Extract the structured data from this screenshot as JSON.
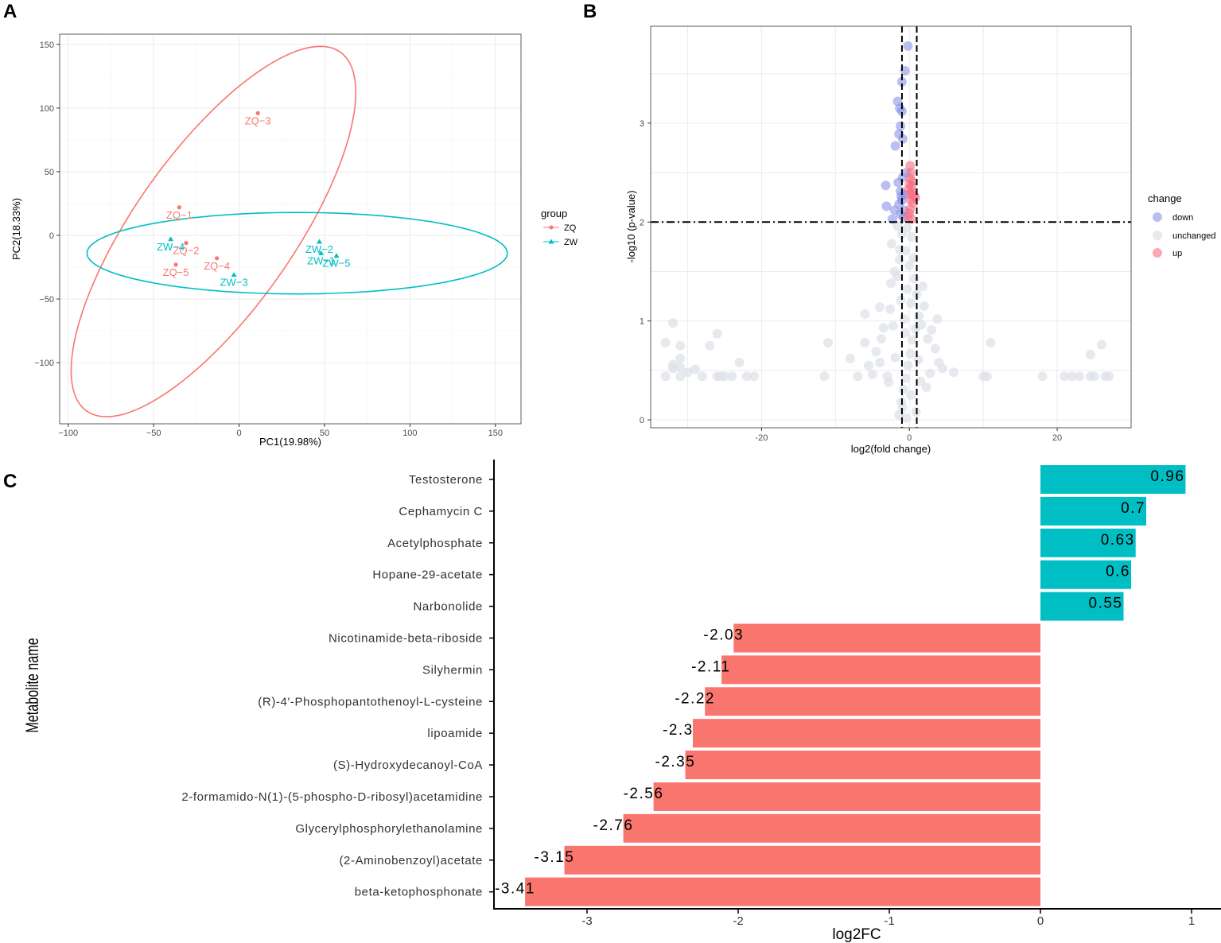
{
  "panels": {
    "a": "A",
    "b": "B",
    "c": "C"
  },
  "colors": {
    "zq": "#F8766D",
    "zw": "#00BFC4",
    "down": "#7F8CE6",
    "unchanged": "#DDE2E8",
    "up": "#F76E84",
    "grid": "#EBEBEB",
    "bar_pos": "#00BFC4",
    "bar_neg": "#F8766D"
  },
  "chart_data": [
    {
      "id": "pca",
      "type": "scatter",
      "xlabel": "PC1(19.98%)",
      "ylabel": "PC2(18.33%)",
      "xlim": [
        -105,
        165
      ],
      "ylim": [
        -148,
        158
      ],
      "xticks": [
        -100,
        -50,
        0,
        50,
        100,
        150
      ],
      "yticks": [
        -100,
        -50,
        0,
        50,
        100,
        150
      ],
      "xtick_labels": [
        "−100",
        "−50",
        "0",
        "50",
        "100",
        "150"
      ],
      "ytick_labels": [
        "−100",
        "−50",
        "0",
        "50",
        "100",
        "150"
      ],
      "legend": {
        "title": "group",
        "items": [
          "ZQ",
          "ZW"
        ]
      },
      "series": [
        {
          "name": "ZQ",
          "points": [
            {
              "label": "ZQ−3",
              "x": 11,
              "y": 96
            },
            {
              "label": "ZQ−1",
              "x": -35,
              "y": 22
            },
            {
              "label": "ZQ−2",
              "x": -31,
              "y": -6
            },
            {
              "label": "ZQ−4",
              "x": -13,
              "y": -18
            },
            {
              "label": "ZQ−5",
              "x": -37,
              "y": -23
            }
          ],
          "ellipse": {
            "cx": -15,
            "cy": 3,
            "rx": 160,
            "ry": 50,
            "angle_deg": 64
          }
        },
        {
          "name": "ZW",
          "points": [
            {
              "label": "ZW−4",
              "x": -40,
              "y": -3
            },
            {
              "label": "ZW−2",
              "x": 47,
              "y": -5
            },
            {
              "label": "ZW−1",
              "x": 48,
              "y": -14
            },
            {
              "label": "ZW−5",
              "x": 57,
              "y": -16
            },
            {
              "label": "ZW−3",
              "x": -3,
              "y": -31
            }
          ],
          "ellipse": {
            "cx": 34,
            "cy": -14,
            "rx": 123,
            "ry": 32,
            "angle_deg": 0
          }
        }
      ]
    },
    {
      "id": "volcano",
      "type": "scatter",
      "xlabel": "log2(fold change)",
      "ylabel": "-log10 (p-value)",
      "xlim": [
        -35,
        30
      ],
      "ylim": [
        -0.08,
        3.98
      ],
      "xticks": [
        -20,
        0,
        20
      ],
      "yticks": [
        0,
        1,
        2,
        3
      ],
      "xtick_labels": [
        "-20",
        "0",
        "20"
      ],
      "ytick_labels": [
        "0",
        "1",
        "2",
        "3"
      ],
      "thresholds": {
        "x": [
          -1,
          1
        ],
        "y": 2
      },
      "legend": {
        "title": "change",
        "items": [
          "down",
          "unchanged",
          "up"
        ]
      },
      "series": [
        {
          "name": "down",
          "points": [
            [
              -0.2,
              3.78
            ],
            [
              -0.6,
              3.53
            ],
            [
              -1.0,
              3.42
            ],
            [
              -1.6,
              3.22
            ],
            [
              -1.3,
              3.15
            ],
            [
              -1.0,
              3.12
            ],
            [
              -1.2,
              2.97
            ],
            [
              -1.4,
              2.89
            ],
            [
              -0.9,
              2.84
            ],
            [
              -1.9,
              2.77
            ],
            [
              -1.5,
              2.4
            ],
            [
              -3.2,
              2.37
            ],
            [
              -1.2,
              2.31
            ],
            [
              -1.0,
              2.22
            ],
            [
              -1.4,
              2.18
            ],
            [
              -3.1,
              2.16
            ],
            [
              -2.0,
              2.12
            ],
            [
              -1.2,
              2.08
            ],
            [
              -0.8,
              2.05
            ],
            [
              -2.3,
              2.03
            ],
            [
              -0.6,
              2.28
            ],
            [
              -0.9,
              2.45
            ],
            [
              -0.4,
              2.5
            ],
            [
              -1.1,
              2.26
            ],
            [
              -0.7,
              2.12
            ]
          ]
        },
        {
          "name": "up",
          "points": [
            [
              0.1,
              2.57
            ],
            [
              0.2,
              2.5
            ],
            [
              0.1,
              2.44
            ],
            [
              0.0,
              2.38
            ],
            [
              0.3,
              2.36
            ],
            [
              -0.1,
              2.33
            ],
            [
              0.4,
              2.3
            ],
            [
              0.6,
              2.27
            ],
            [
              0.8,
              2.25
            ],
            [
              0.2,
              2.22
            ],
            [
              0.5,
              2.19
            ],
            [
              0.1,
              2.13
            ],
            [
              0.0,
              2.09
            ],
            [
              -0.2,
              2.05
            ],
            [
              0.3,
              2.03
            ],
            [
              0.1,
              2.28
            ],
            [
              0.4,
              2.41
            ]
          ]
        },
        {
          "name": "unchanged",
          "points": [
            [
              -32,
              0.98
            ],
            [
              -33,
              0.78
            ],
            [
              -31,
              0.75
            ],
            [
              -31,
              0.62
            ],
            [
              -32,
              0.56
            ],
            [
              -32,
              0.52
            ],
            [
              -31,
              0.53
            ],
            [
              -30,
              0.48
            ],
            [
              -29,
              0.51
            ],
            [
              -27,
              0.75
            ],
            [
              -26,
              0.87
            ],
            [
              -23,
              0.58
            ],
            [
              -33,
              0.44
            ],
            [
              -31,
              0.44
            ],
            [
              -28,
              0.44
            ],
            [
              -26,
              0.44
            ],
            [
              -25.5,
              0.44
            ],
            [
              -25,
              0.44
            ],
            [
              -24,
              0.44
            ],
            [
              -22,
              0.44
            ],
            [
              -21,
              0.44
            ],
            [
              -11.5,
              0.44
            ],
            [
              -11,
              0.78
            ],
            [
              -8,
              0.62
            ],
            [
              -7,
              0.44
            ],
            [
              -6,
              1.07
            ],
            [
              -6,
              0.78
            ],
            [
              -5,
              0.46
            ],
            [
              -4,
              1.14
            ],
            [
              -4,
              0.58
            ],
            [
              -3.5,
              0.93
            ],
            [
              -3,
              0.44
            ],
            [
              -2.5,
              1.38
            ],
            [
              -2.4,
              1.78
            ],
            [
              -2,
              1.5
            ],
            [
              -1.6,
              1.96
            ],
            [
              -1.3,
              1.62
            ],
            [
              -1.2,
              1.21
            ],
            [
              -1.0,
              1.88
            ],
            [
              -0.7,
              1.02
            ],
            [
              -0.5,
              1.71
            ],
            [
              -0.3,
              1.94
            ],
            [
              0.0,
              1.56
            ],
            [
              0.2,
              1.18
            ],
            [
              0.3,
              1.85
            ],
            [
              0.7,
              1.43
            ],
            [
              1.0,
              1.27
            ],
            [
              1.3,
              1.05
            ],
            [
              1.6,
              0.96
            ],
            [
              2.0,
              1.15
            ],
            [
              2.5,
              0.82
            ],
            [
              3.0,
              0.91
            ],
            [
              3.5,
              0.72
            ],
            [
              4.0,
              0.58
            ],
            [
              4.5,
              0.52
            ],
            [
              6.0,
              0.48
            ],
            [
              10.0,
              0.44
            ],
            [
              10.5,
              0.44
            ],
            [
              11.0,
              0.78
            ],
            [
              18.0,
              0.44
            ],
            [
              21.0,
              0.44
            ],
            [
              22.0,
              0.44
            ],
            [
              23.0,
              0.44
            ],
            [
              24.5,
              0.44
            ],
            [
              24.5,
              0.66
            ],
            [
              25.0,
              0.44
            ],
            [
              26.0,
              0.76
            ],
            [
              26.5,
              0.44
            ],
            [
              27.0,
              0.44
            ],
            [
              -1.4,
              0.05
            ],
            [
              -1.1,
              0.18
            ],
            [
              -0.8,
              0.31
            ],
            [
              -0.5,
              0.42
            ],
            [
              -0.2,
              0.55
            ],
            [
              0.1,
              0.67
            ],
            [
              0.4,
              0.81
            ],
            [
              0.8,
              0.92
            ],
            [
              -1.9,
              0.63
            ],
            [
              -2.2,
              0.95
            ],
            [
              -2.8,
              0.38
            ],
            [
              1.5,
              0.39
            ],
            [
              2.3,
              0.33
            ],
            [
              -0.9,
              0.12
            ],
            [
              0.2,
              0.25
            ],
            [
              -0.3,
              1.32
            ],
            [
              0.6,
              1.64
            ],
            [
              -1.7,
              1.45
            ],
            [
              -0.6,
              0.88
            ],
            [
              1.2,
              0.61
            ],
            [
              -3.8,
              0.82
            ],
            [
              -5.5,
              0.55
            ],
            [
              2.8,
              0.47
            ],
            [
              3.8,
              1.02
            ],
            [
              -4.5,
              0.69
            ],
            [
              0.9,
              0.08
            ],
            [
              -0.4,
              0.02
            ],
            [
              -2.6,
              1.12
            ],
            [
              1.8,
              1.35
            ],
            [
              -1.3,
              1.72
            ]
          ]
        }
      ]
    },
    {
      "id": "bars",
      "type": "bar",
      "orientation": "horizontal",
      "xlabel": "log2FC",
      "ylabel": "Metabolite name",
      "xlim": [
        -3.6,
        1.18
      ],
      "xticks": [
        -3,
        -2,
        -1,
        0,
        1
      ],
      "xtick_labels": [
        "-3",
        "-2",
        "-1",
        "0",
        "1"
      ],
      "categories": [
        "Testosterone",
        "Cephamycin C",
        "Acetylphosphate",
        "Hopane-29-acetate",
        "Narbonolide",
        "Nicotinamide-beta-riboside",
        "Silyhermin",
        "(R)-4'-Phosphopantothenoyl-L-cysteine",
        "lipoamide",
        "(S)-Hydroxydecanoyl-CoA",
        "2-formamido-N(1)-(5-phospho-D-ribosyl)acetamidine",
        "Glycerylphosphorylethanolamine",
        "(2-Aminobenzoyl)acetate",
        "beta-ketophosphonate"
      ],
      "values": [
        0.96,
        0.7,
        0.63,
        0.6,
        0.55,
        -2.03,
        -2.11,
        -2.22,
        -2.3,
        -2.35,
        -2.56,
        -2.76,
        -3.15,
        -3.41
      ],
      "value_labels": [
        "0.96",
        "0.7",
        "0.63",
        "0.6",
        "0.55",
        "-2.03",
        "-2.11",
        "-2.22",
        "-2.3",
        "-2.35",
        "-2.56",
        "-2.76",
        "-3.15",
        "-3.41"
      ]
    }
  ]
}
